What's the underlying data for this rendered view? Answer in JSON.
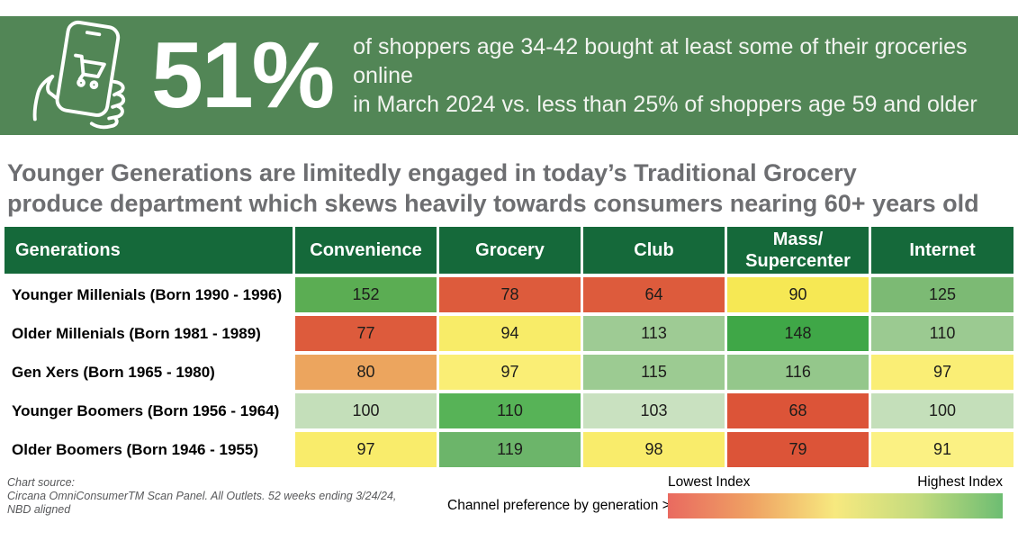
{
  "banner": {
    "icon": "phone-shopping-cart-icon",
    "stat": "51%",
    "line1": "of shoppers age 34-42 bought at least some of their groceries online",
    "line2": "in March 2024 vs. less than 25% of shoppers age 59 and older",
    "bg_color": "#528656",
    "text_color": "#FFFFFF"
  },
  "title": {
    "line1": "Younger Generations are limitedly engaged in today’s Traditional Grocery",
    "line2": "produce department which skews heavily towards consumers nearing 60+ years old",
    "color": "#6D6E71"
  },
  "table": {
    "header_bg": "#15693A",
    "columns": [
      "Generations",
      "Convenience",
      "Grocery",
      "Club",
      "Mass/\nSupercenter",
      "Internet"
    ],
    "rows": [
      {
        "label": "Younger Millenials (Born 1990 - 1996)",
        "cells": [
          {
            "value": "152",
            "color": "#5BAD53"
          },
          {
            "value": "78",
            "color": "#DD5B3C"
          },
          {
            "value": "64",
            "color": "#DD5B3C"
          },
          {
            "value": "90",
            "color": "#F6E854"
          },
          {
            "value": "125",
            "color": "#7CBA74"
          }
        ]
      },
      {
        "label": "Older Millenials (Born 1981 - 1989)",
        "cells": [
          {
            "value": "77",
            "color": "#DD5B3C"
          },
          {
            "value": "94",
            "color": "#F8EC68"
          },
          {
            "value": "113",
            "color": "#9ECB94"
          },
          {
            "value": "148",
            "color": "#3FA747"
          },
          {
            "value": "110",
            "color": "#9BCA91"
          }
        ]
      },
      {
        "label": "Gen Xers (Born 1965 - 1980)",
        "cells": [
          {
            "value": "80",
            "color": "#ECA55E"
          },
          {
            "value": "97",
            "color": "#FAEE75"
          },
          {
            "value": "115",
            "color": "#9CCB92"
          },
          {
            "value": "116",
            "color": "#94C78B"
          },
          {
            "value": "97",
            "color": "#FAEE75"
          }
        ]
      },
      {
        "label": "Younger Boomers (Born 1956 - 1964)",
        "cells": [
          {
            "value": "100",
            "color": "#C4DFBA"
          },
          {
            "value": "110",
            "color": "#57B357"
          },
          {
            "value": "103",
            "color": "#C9E1C0"
          },
          {
            "value": "68",
            "color": "#DC5438"
          },
          {
            "value": "100",
            "color": "#C4DFBA"
          }
        ]
      },
      {
        "label": "Older Boomers (Born 1946 - 1955)",
        "cells": [
          {
            "value": "97",
            "color": "#F9EC6B"
          },
          {
            "value": "119",
            "color": "#6CB56A"
          },
          {
            "value": "98",
            "color": "#F9EC6B"
          },
          {
            "value": "79",
            "color": "#DC5438"
          },
          {
            "value": "91",
            "color": "#FBF183"
          }
        ]
      }
    ]
  },
  "footer": {
    "source_line1": "Chart source:",
    "source_line2": "Circana OmniConsumerTM Scan Panel. All Outlets. 52 weeks ending 3/24/24,",
    "source_line3": "NBD aligned",
    "caption": "Channel preference by generation >",
    "legend": {
      "low_label": "Lowest Index",
      "high_label": "Highest Index",
      "gradient": [
        "#E96A60",
        "#EFA263",
        "#F7E97F",
        "#C3DB7E",
        "#6DBD72"
      ]
    }
  },
  "chart_data": {
    "type": "heatmap",
    "title": "Younger Generations are limitedly engaged in today’s Traditional Grocery produce department which skews heavily towards consumers nearing 60+ years old",
    "categories": [
      "Convenience",
      "Grocery",
      "Club",
      "Mass/Supercenter",
      "Internet"
    ],
    "series": [
      {
        "name": "Younger Millenials (Born 1990 - 1996)",
        "values": [
          152,
          78,
          64,
          90,
          125
        ]
      },
      {
        "name": "Older Millenials (Born 1981 - 1989)",
        "values": [
          77,
          94,
          113,
          148,
          110
        ]
      },
      {
        "name": "Gen Xers (Born 1965 - 1980)",
        "values": [
          80,
          97,
          115,
          116,
          97
        ]
      },
      {
        "name": "Younger Boomers (Born 1956 - 1964)",
        "values": [
          100,
          110,
          103,
          68,
          100
        ]
      },
      {
        "name": "Older Boomers (Born 1946 - 1955)",
        "values": [
          97,
          119,
          98,
          79,
          91
        ]
      }
    ],
    "value_scale": {
      "low_label": "Lowest Index",
      "high_label": "Highest Index"
    },
    "callout": {
      "stat": "51%",
      "text": "of shoppers age 34-42 bought at least some of their groceries online in March 2024 vs. less than 25% of shoppers age 59 and older"
    },
    "source": "Circana OmniConsumerTM Scan Panel. All Outlets. 52 weeks ending 3/24/24, NBD aligned"
  }
}
